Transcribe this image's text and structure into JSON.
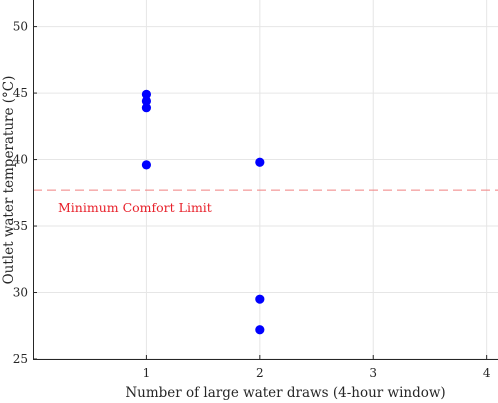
{
  "chart_data": {
    "type": "scatter",
    "xlabel": "Number of large water draws (4-hour window)",
    "ylabel": "Outlet water temperature (°C)",
    "xlim": [
      0,
      4.1
    ],
    "ylim": [
      25,
      52
    ],
    "xticks": [
      1,
      2,
      3,
      4
    ],
    "yticks": [
      25,
      30,
      35,
      40,
      45,
      50
    ],
    "grid": true,
    "series": [
      {
        "color": "#0000ff",
        "points": [
          {
            "x": 1,
            "y": 44.9
          },
          {
            "x": 1,
            "y": 44.4
          },
          {
            "x": 1,
            "y": 43.9
          },
          {
            "x": 1,
            "y": 39.6
          },
          {
            "x": 2,
            "y": 39.8
          },
          {
            "x": 2,
            "y": 29.5
          },
          {
            "x": 2,
            "y": 27.2
          }
        ]
      }
    ],
    "reference_line": {
      "y": 37.7,
      "label": "Minimum Comfort Limit",
      "color": "#f08080",
      "label_color": "#e8202a",
      "style": "dashed"
    }
  }
}
